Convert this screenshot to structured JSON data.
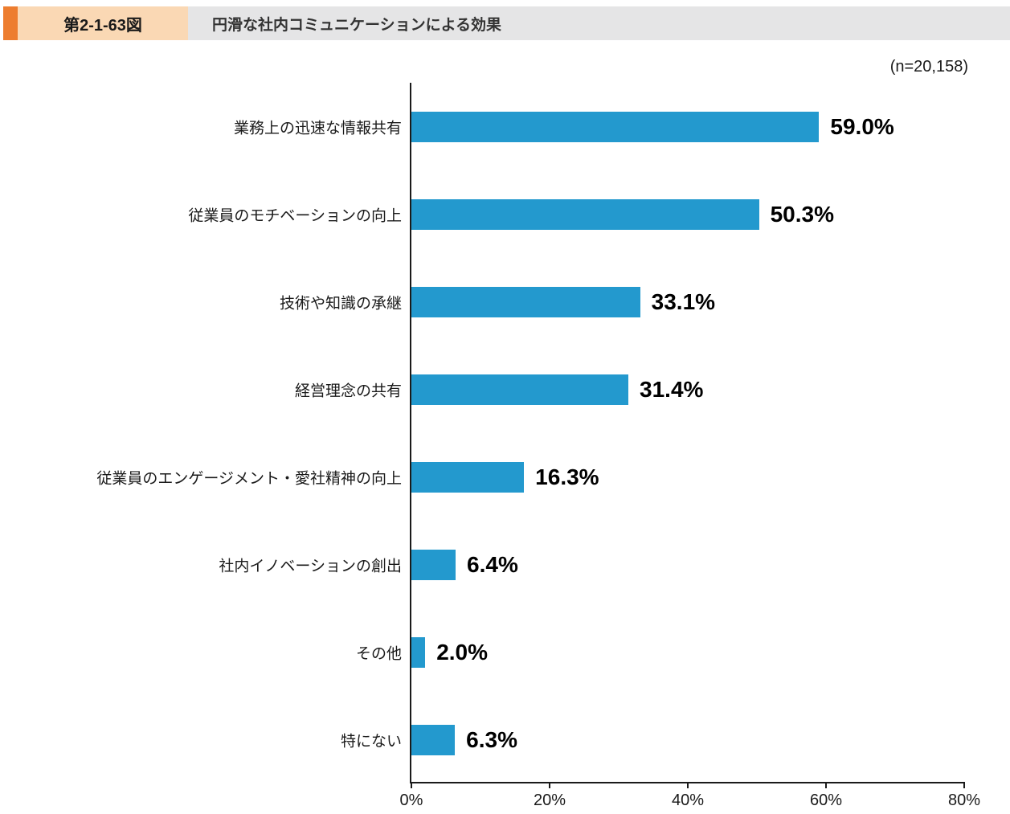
{
  "header": {
    "figure_number": "第2-1-63図",
    "title": "円滑な社内コミュニケーションによる効果"
  },
  "sample_size": "(n=20,158)",
  "colors": {
    "accent_orange": "#ED7D2F",
    "figure_box_bg": "#FAD8B4",
    "title_bar_bg": "#E5E5E6",
    "bar_blue": "#2399CE",
    "axis": "#1a1a1a"
  },
  "chart_data": {
    "type": "bar",
    "orientation": "horizontal",
    "title": "円滑な社内コミュニケーションによる効果",
    "categories": [
      "業務上の迅速な情報共有",
      "従業員のモチベーションの向上",
      "技術や知識の承継",
      "経営理念の共有",
      "従業員のエンゲージメント・愛社精神の向上",
      "社内イノベーションの創出",
      "その他",
      "特にない"
    ],
    "values": [
      59.0,
      50.3,
      33.1,
      31.4,
      16.3,
      6.4,
      2.0,
      6.3
    ],
    "value_labels": [
      "59.0%",
      "50.3%",
      "33.1%",
      "31.4%",
      "16.3%",
      "6.4%",
      "2.0%",
      "6.3%"
    ],
    "xlabel": "",
    "ylabel": "",
    "xlim": [
      0,
      80
    ],
    "x_ticks": [
      "0%",
      "20%",
      "40%",
      "60%",
      "80%"
    ],
    "grid": false,
    "legend": false,
    "bar_color": "#2399CE"
  }
}
